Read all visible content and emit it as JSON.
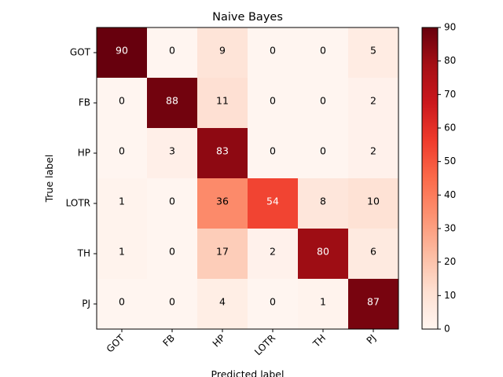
{
  "chart_data": {
    "type": "heatmap",
    "title": "Naive Bayes",
    "xlabel": "Predicted label",
    "ylabel": "True label",
    "x_categories": [
      "GOT",
      "FB",
      "HP",
      "LOTR",
      "TH",
      "PJ"
    ],
    "y_categories": [
      "GOT",
      "FB",
      "HP",
      "LOTR",
      "TH",
      "PJ"
    ],
    "values": [
      [
        90,
        0,
        9,
        0,
        0,
        5
      ],
      [
        0,
        88,
        11,
        0,
        0,
        2
      ],
      [
        0,
        3,
        83,
        0,
        0,
        2
      ],
      [
        1,
        0,
        36,
        54,
        8,
        10
      ],
      [
        1,
        0,
        17,
        2,
        80,
        6
      ],
      [
        0,
        0,
        4,
        0,
        1,
        87
      ]
    ],
    "colorscale": "Reds",
    "colorbar": {
      "range": [
        0,
        90
      ],
      "ticks": [
        "0",
        "10",
        "20",
        "30",
        "40",
        "50",
        "60",
        "70",
        "80",
        "90"
      ]
    },
    "grid": false
  }
}
